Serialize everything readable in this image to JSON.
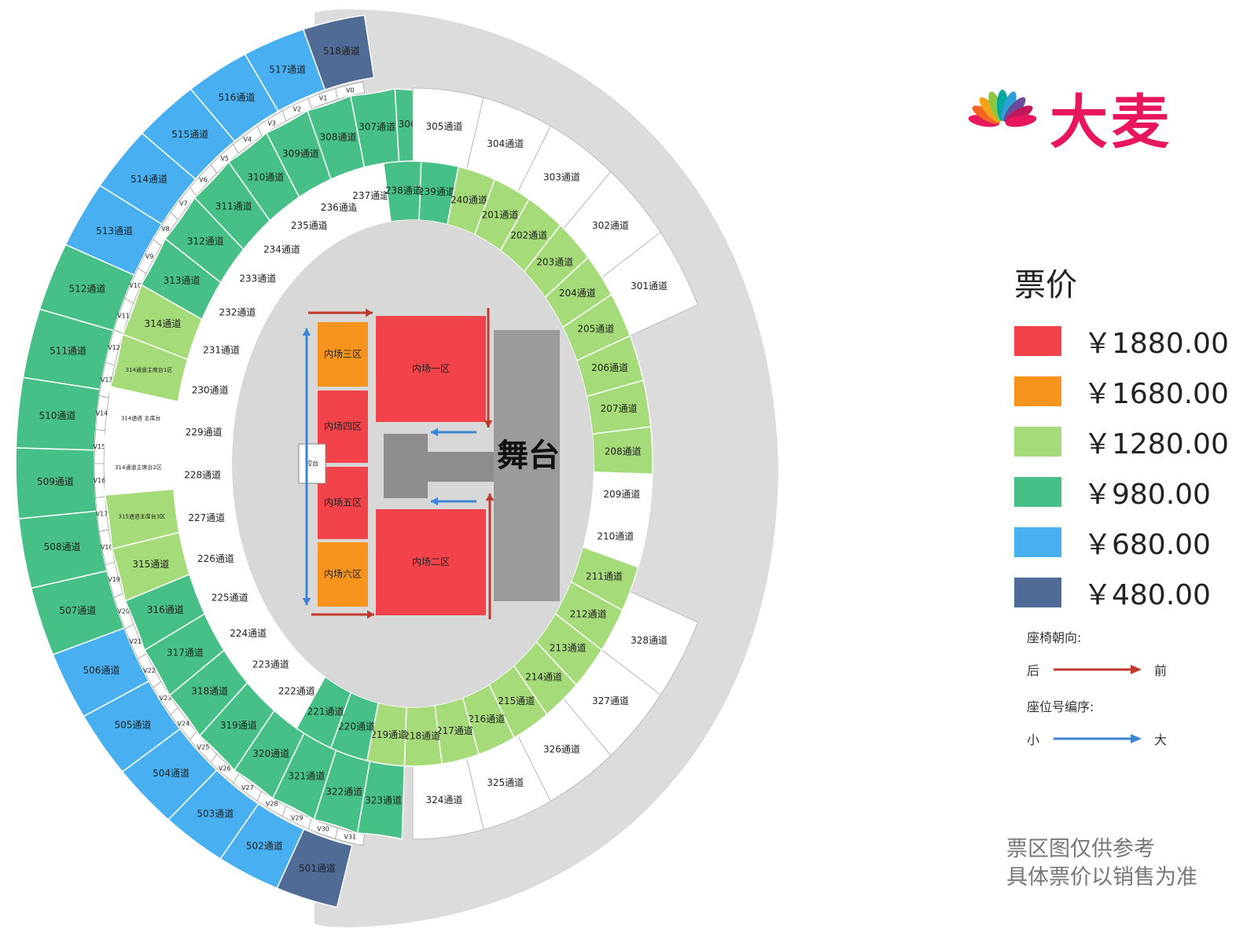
{
  "brand": {
    "logo_text": "大麦"
  },
  "legend": {
    "title": "票价",
    "items": [
      {
        "price": "￥1880.00",
        "color": "#f2424a"
      },
      {
        "price": "￥1680.00",
        "color": "#f7941d"
      },
      {
        "price": "￥1280.00",
        "color": "#a6db7a"
      },
      {
        "price": "￥980.00",
        "color": "#47c087"
      },
      {
        "price": "￥680.00",
        "color": "#48aff0"
      },
      {
        "price": "￥480.00",
        "color": "#4f6b96"
      }
    ],
    "seat_direction_label": "座椅朝向:",
    "seat_back": "后",
    "seat_front": "前",
    "seat_number_label": "座位号编序:",
    "seat_small": "小",
    "seat_large": "大",
    "direction_color": "#c0392b",
    "numbering_color": "#3a86d4"
  },
  "disclaimer": [
    "票区图仅供参考",
    "具体票价以销售为准"
  ],
  "stage": {
    "label": "舞台",
    "mixer_label": "控台",
    "floor_zones": [
      {
        "label": "内场一区",
        "color": "#f2424a"
      },
      {
        "label": "内场二区",
        "color": "#f2424a"
      },
      {
        "label": "内场三区",
        "color": "#f7941d"
      },
      {
        "label": "内场四区",
        "color": "#f2424a"
      },
      {
        "label": "内场五区",
        "color": "#f2424a"
      },
      {
        "label": "内场六区",
        "color": "#f7941d"
      }
    ]
  },
  "rings": {
    "r500": [
      {
        "label": "501通道",
        "tier": "dark"
      },
      {
        "label": "502通道",
        "tier": "blue"
      },
      {
        "label": "503通道",
        "tier": "blue"
      },
      {
        "label": "504通道",
        "tier": "blue"
      },
      {
        "label": "505通道",
        "tier": "blue"
      },
      {
        "label": "506通道",
        "tier": "blue"
      },
      {
        "label": "507通道",
        "tier": "green"
      },
      {
        "label": "508通道",
        "tier": "green"
      },
      {
        "label": "509通道",
        "tier": "green"
      },
      {
        "label": "510通道",
        "tier": "green"
      },
      {
        "label": "511通道",
        "tier": "green"
      },
      {
        "label": "512通道",
        "tier": "green"
      },
      {
        "label": "513通道",
        "tier": "blue"
      },
      {
        "label": "514通道",
        "tier": "blue"
      },
      {
        "label": "515通道",
        "tier": "blue"
      },
      {
        "label": "516通道",
        "tier": "blue"
      },
      {
        "label": "517通道",
        "tier": "blue"
      },
      {
        "label": "518通道",
        "tier": "dark"
      }
    ],
    "r300_left": [
      {
        "label": "306通道",
        "tier": "green"
      },
      {
        "label": "307通道",
        "tier": "green"
      },
      {
        "label": "308通道",
        "tier": "green"
      },
      {
        "label": "309通道",
        "tier": "green"
      },
      {
        "label": "310通道",
        "tier": "green"
      },
      {
        "label": "311通道",
        "tier": "green"
      },
      {
        "label": "312通道",
        "tier": "green"
      },
      {
        "label": "313通道",
        "tier": "green"
      },
      {
        "label": "314通道",
        "tier": "lightgreen"
      },
      {
        "label": "314通道主席台1区",
        "tier": "lightgreen"
      },
      {
        "label": "314通道 主席台",
        "tier": "white"
      },
      {
        "label": "314通道主席台2区",
        "tier": "white"
      },
      {
        "label": "315通道主席台3区",
        "tier": "lightgreen"
      },
      {
        "label": "315通道",
        "tier": "lightgreen"
      },
      {
        "label": "316通道",
        "tier": "green"
      },
      {
        "label": "317通道",
        "tier": "green"
      },
      {
        "label": "318通道",
        "tier": "green"
      },
      {
        "label": "319通道",
        "tier": "green"
      },
      {
        "label": "320通道",
        "tier": "green"
      },
      {
        "label": "321通道",
        "tier": "green"
      },
      {
        "label": "322通道",
        "tier": "green"
      },
      {
        "label": "323通道",
        "tier": "green"
      }
    ],
    "r300_right": [
      {
        "label": "305通道",
        "tier": "white"
      },
      {
        "label": "304通道",
        "tier": "white"
      },
      {
        "label": "303通道",
        "tier": "white"
      },
      {
        "label": "302通道",
        "tier": "white"
      },
      {
        "label": "301通道",
        "tier": "white"
      },
      {
        "label": "328通道",
        "tier": "white"
      },
      {
        "label": "327通道",
        "tier": "white"
      },
      {
        "label": "326通道",
        "tier": "white"
      },
      {
        "label": "325通道",
        "tier": "white"
      },
      {
        "label": "324通道",
        "tier": "white"
      }
    ],
    "r200": [
      {
        "label": "239通道",
        "tier": "green"
      },
      {
        "label": "240通道",
        "tier": "lightgreen"
      },
      {
        "label": "201通道",
        "tier": "lightgreen"
      },
      {
        "label": "202通道",
        "tier": "lightgreen"
      },
      {
        "label": "203通道",
        "tier": "lightgreen"
      },
      {
        "label": "204通道",
        "tier": "lightgreen"
      },
      {
        "label": "205通道",
        "tier": "lightgreen"
      },
      {
        "label": "206通道",
        "tier": "lightgreen"
      },
      {
        "label": "207通道",
        "tier": "lightgreen"
      },
      {
        "label": "208通道",
        "tier": "lightgreen"
      },
      {
        "label": "209通道",
        "tier": "white"
      },
      {
        "label": "210通道",
        "tier": "white"
      },
      {
        "label": "211通道",
        "tier": "lightgreen"
      },
      {
        "label": "212通道",
        "tier": "lightgreen"
      },
      {
        "label": "213通道",
        "tier": "lightgreen"
      },
      {
        "label": "214通道",
        "tier": "lightgreen"
      },
      {
        "label": "215通道",
        "tier": "lightgreen"
      },
      {
        "label": "216通道",
        "tier": "lightgreen"
      },
      {
        "label": "217通道",
        "tier": "lightgreen"
      },
      {
        "label": "218通道",
        "tier": "lightgreen"
      },
      {
        "label": "219通道",
        "tier": "lightgreen"
      },
      {
        "label": "220通道",
        "tier": "green"
      },
      {
        "label": "221通道",
        "tier": "green"
      },
      {
        "label": "222通道",
        "tier": "white"
      },
      {
        "label": "223通道",
        "tier": "white"
      },
      {
        "label": "224通道",
        "tier": "white"
      },
      {
        "label": "225通道",
        "tier": "white"
      },
      {
        "label": "226通道",
        "tier": "white"
      },
      {
        "label": "227通道",
        "tier": "white"
      },
      {
        "label": "228通道",
        "tier": "white"
      },
      {
        "label": "229通道",
        "tier": "white"
      },
      {
        "label": "230通道",
        "tier": "white"
      },
      {
        "label": "231通道",
        "tier": "white"
      },
      {
        "label": "232通道",
        "tier": "white"
      },
      {
        "label": "233通道",
        "tier": "white"
      },
      {
        "label": "234通道",
        "tier": "white"
      },
      {
        "label": "235通道",
        "tier": "white"
      },
      {
        "label": "236通道",
        "tier": "white"
      },
      {
        "label": "237通道",
        "tier": "white"
      },
      {
        "label": "238通道",
        "tier": "green"
      }
    ],
    "vip_boxes": [
      "V0",
      "V1",
      "V2",
      "V3",
      "V4",
      "V5",
      "V6",
      "V7",
      "V8",
      "V9",
      "V10",
      "V11",
      "V12",
      "V13",
      "V14",
      "V15",
      "V16",
      "V17",
      "V18",
      "V19",
      "V20",
      "V21",
      "V22",
      "V23",
      "V24",
      "V25",
      "V26",
      "V27",
      "V28",
      "V29",
      "V30",
      "V31"
    ]
  },
  "tier_colors": {
    "dark": "#4f6b96",
    "blue": "#48aff0",
    "green": "#47c087",
    "lightgreen": "#a6db7a",
    "white": "#ffffff",
    "outer_bowl": "#dcdcdc",
    "field": "#d8d8d8",
    "stage": "#9b9b9b",
    "runway": "#8d8d8d"
  }
}
